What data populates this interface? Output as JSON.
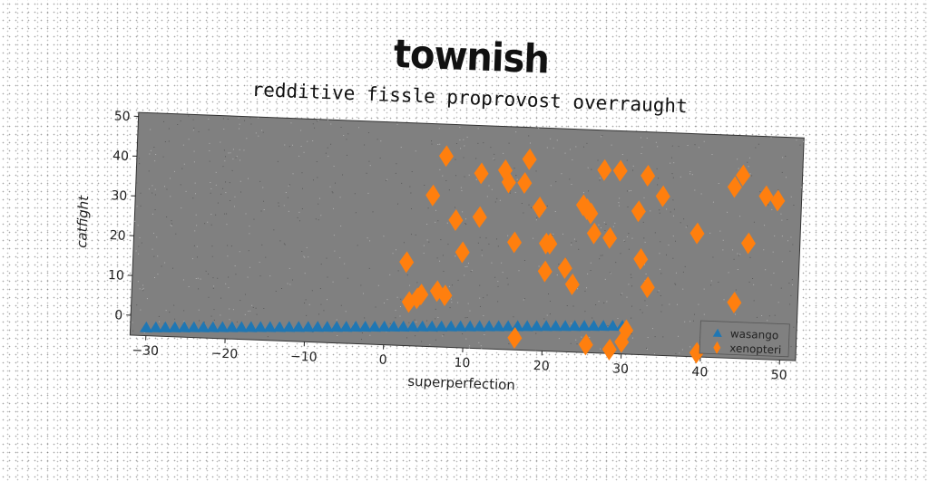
{
  "figure": {
    "title": "townish",
    "subtitle": "redditive fissle proprovost overraught"
  },
  "chart_data": {
    "type": "scatter",
    "title": "redditive fissle proprovost overraught",
    "xlabel": "superperfection",
    "ylabel": "catfight",
    "xlim": [
      -32,
      52
    ],
    "ylim": [
      -5,
      51
    ],
    "xticks": [
      -30,
      -20,
      -10,
      0,
      10,
      20,
      30,
      40,
      50
    ],
    "yticks": [
      0,
      10,
      20,
      30,
      40,
      50
    ],
    "grid": false,
    "legend_position": "lower-right",
    "plot_background": "#808080",
    "series": [
      {
        "name": "wasango",
        "marker": "triangle",
        "color": "#1f77b4",
        "x": [
          -30.0,
          -28.8,
          -27.6,
          -26.4,
          -25.2,
          -24.0,
          -22.8,
          -21.6,
          -20.4,
          -19.2,
          -18.0,
          -16.8,
          -15.6,
          -14.4,
          -13.2,
          -12.0,
          -10.8,
          -9.6,
          -8.4,
          -7.2,
          -6.0,
          -4.8,
          -3.6,
          -2.4,
          -1.2,
          0.0,
          1.2,
          2.4,
          3.6,
          4.8,
          6.0,
          7.2,
          8.4,
          9.6,
          10.8,
          12.0,
          13.2,
          14.4,
          15.6,
          16.8,
          18.0,
          19.2,
          20.4,
          21.6,
          22.8,
          24.0,
          25.2,
          26.4,
          27.6,
          28.8,
          30.0
        ],
        "y": [
          -3.0,
          -2.9,
          -2.8,
          -2.7,
          -2.6,
          -2.5,
          -2.4,
          -2.3,
          -2.2,
          -2.1,
          -2.0,
          -1.9,
          -1.8,
          -1.7,
          -1.6,
          -1.5,
          -1.4,
          -1.3,
          -1.2,
          -1.1,
          -1.0,
          -0.9,
          -0.8,
          -0.7,
          -0.6,
          -0.5,
          -0.4,
          -0.3,
          -0.2,
          -0.1,
          0.0,
          0.1,
          0.2,
          0.3,
          0.4,
          0.5,
          0.6,
          0.7,
          0.8,
          0.9,
          1.0,
          1.1,
          1.2,
          1.3,
          1.4,
          1.5,
          1.6,
          1.7,
          1.8,
          1.9,
          2.0
        ]
      },
      {
        "name": "xenopteri",
        "marker": "diamond",
        "color": "#ff7f0e",
        "x": [
          2.5,
          3,
          4,
          4.5,
          5.5,
          6.5,
          7,
          7.5,
          8.5,
          9.5,
          11.5,
          11.5,
          14.5,
          15.0,
          16.5,
          17.0,
          17.5,
          19.0,
          20.0,
          20.0,
          20.5,
          22.5,
          23.5,
          24.5,
          25.0,
          25.5,
          26.0,
          27.0,
          28.0,
          29.0,
          30.0,
          30.5,
          31.5,
          32.0,
          32.5,
          33.0,
          34.5,
          39.0,
          39.5,
          43.5,
          44.0,
          44.5,
          45.5,
          47.5,
          49.0,
          16.0,
          25.5,
          28.5
        ],
        "y": [
          16,
          6,
          7,
          8,
          33,
          9,
          43,
          8,
          27,
          19,
          28,
          39,
          40,
          37,
          -2,
          37,
          43,
          31,
          22,
          15,
          22,
          16,
          12,
          32,
          31,
          30,
          25,
          41,
          24,
          41,
          -2,
          1,
          31,
          19,
          40,
          12,
          35,
          26,
          -4,
          38,
          9,
          41,
          24,
          36,
          35,
          22,
          -3,
          -4
        ]
      }
    ]
  }
}
